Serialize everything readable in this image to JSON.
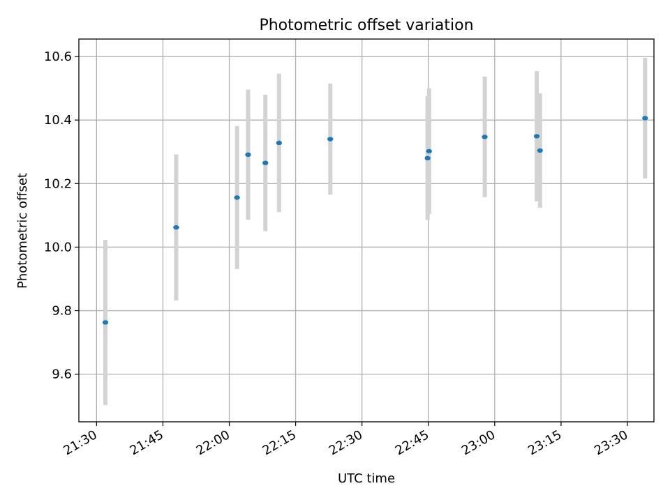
{
  "chart_data": {
    "type": "scatter",
    "title": "Photometric offset variation",
    "xlabel": "UTC time",
    "ylabel": "Photometric offset",
    "xlim": [
      "21:26",
      "23:36"
    ],
    "ylim": [
      9.45,
      10.655
    ],
    "grid": true,
    "x_tick_labels": [
      "21:30",
      "21:45",
      "22:00",
      "22:15",
      "22:30",
      "22:45",
      "23:00",
      "23:15",
      "23:30"
    ],
    "y_tick_labels": [
      "9.6",
      "9.8",
      "10.0",
      "10.2",
      "10.4",
      "10.6"
    ],
    "y_ticks": [
      9.6,
      9.8,
      10.0,
      10.2,
      10.4,
      10.6
    ],
    "series": [
      {
        "points": [
          {
            "x": "21:32",
            "y": 9.763,
            "err": 0.26
          },
          {
            "x": "21:48",
            "y": 10.062,
            "err": 0.23
          },
          {
            "x": "22:01:45",
            "y": 10.156,
            "err": 0.225
          },
          {
            "x": "22:04:15",
            "y": 10.291,
            "err": 0.205
          },
          {
            "x": "22:08:10",
            "y": 10.265,
            "err": 0.215
          },
          {
            "x": "22:11:15",
            "y": 10.328,
            "err": 0.218
          },
          {
            "x": "22:22:50",
            "y": 10.34,
            "err": 0.175
          },
          {
            "x": "22:44:50",
            "y": 10.28,
            "err": 0.195
          },
          {
            "x": "22:45:10",
            "y": 10.302,
            "err": 0.198
          },
          {
            "x": "22:57:45",
            "y": 10.347,
            "err": 0.19
          },
          {
            "x": "23:09:30",
            "y": 10.349,
            "err": 0.205
          },
          {
            "x": "23:10:15",
            "y": 10.304,
            "err": 0.18
          },
          {
            "x": "23:34:00",
            "y": 10.406,
            "err": 0.19
          }
        ]
      }
    ]
  },
  "colors": {
    "point": "#1f77b4",
    "errorbar": "#d3d3d3",
    "grid": "#b0b0b0",
    "axis": "#000000"
  }
}
